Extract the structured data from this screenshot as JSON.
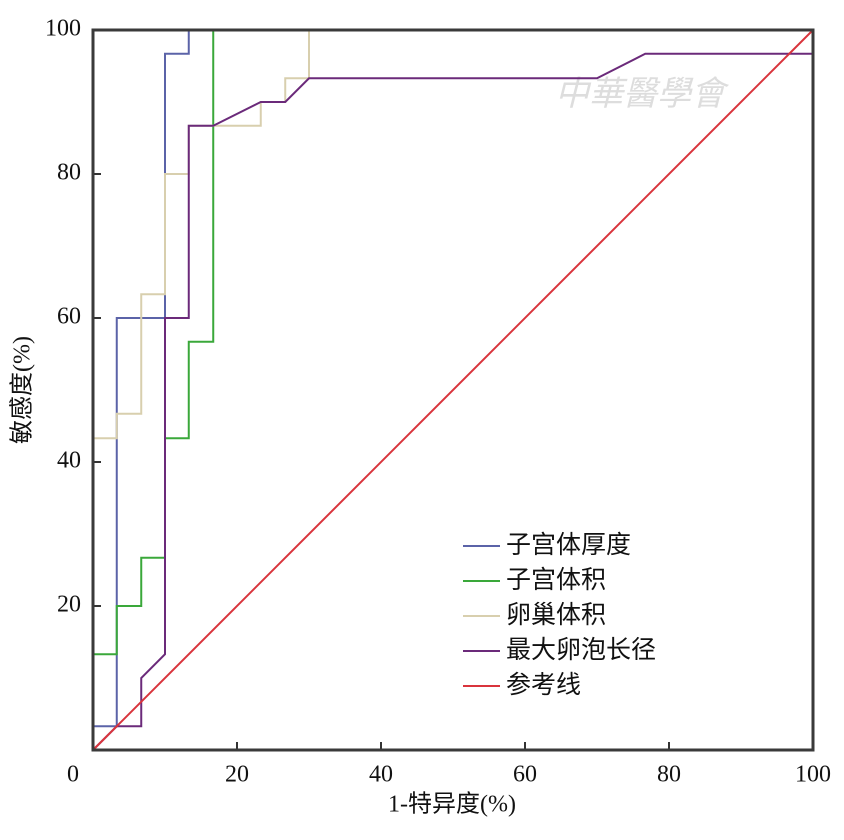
{
  "chart_data": {
    "type": "line",
    "xlabel": "1-特异度(%)",
    "ylabel": "敏感度(%)",
    "watermark": "中華醫學會",
    "xlim": [
      0,
      100
    ],
    "ylim": [
      0,
      100
    ],
    "xticks": [
      0,
      20,
      40,
      60,
      80,
      100
    ],
    "yticks": [
      20,
      40,
      60,
      80,
      100
    ],
    "series": [
      {
        "name": "子宫体厚度",
        "color": "#5b63a8",
        "x": [
          0,
          3.3,
          3.3,
          10,
          10,
          13.3,
          13.3,
          100
        ],
        "values": [
          3.3,
          3.3,
          60,
          60,
          96.7,
          96.7,
          100,
          100
        ]
      },
      {
        "name": "子宫体积",
        "color": "#3aa83a",
        "x": [
          0,
          3.3,
          3.3,
          6.7,
          6.7,
          10,
          10,
          13.3,
          13.3,
          16.7,
          16.7,
          100
        ],
        "values": [
          13.3,
          13.3,
          20,
          20,
          26.7,
          26.7,
          43.3,
          43.3,
          56.7,
          56.7,
          100,
          100
        ]
      },
      {
        "name": "卵巢体积",
        "color": "#d8cfae",
        "x": [
          0,
          3.3,
          3.3,
          6.7,
          6.7,
          10,
          10,
          13.3,
          13.3,
          23.3,
          23.3,
          26.7,
          26.7,
          30,
          30,
          100
        ],
        "values": [
          43.3,
          43.3,
          46.7,
          46.7,
          63.3,
          63.3,
          80,
          80,
          86.7,
          86.7,
          90,
          90,
          93.3,
          93.3,
          100,
          100
        ]
      },
      {
        "name": "最大卵泡长径",
        "color": "#6b2a7a",
        "x": [
          0,
          3.3,
          6.7,
          6.7,
          10,
          10,
          13.3,
          13.3,
          16.7,
          23.3,
          26.7,
          30,
          70,
          76.7,
          100
        ],
        "values": [
          0,
          3.3,
          3.3,
          10,
          13.3,
          60,
          60,
          86.7,
          86.7,
          90,
          90,
          93.3,
          93.3,
          96.7,
          96.7
        ]
      },
      {
        "name": "参考线",
        "color": "#d9343c",
        "x": [
          0,
          100
        ],
        "values": [
          0,
          100
        ]
      }
    ]
  }
}
